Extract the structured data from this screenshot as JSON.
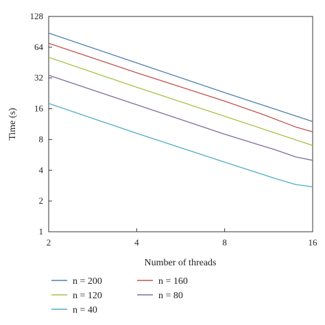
{
  "chart_data": {
    "type": "line",
    "xlabel": "Number of threads",
    "ylabel": "Time (s)",
    "x_scale": "log2",
    "y_scale": "log2",
    "xlim": [
      2,
      16
    ],
    "ylim": [
      1,
      128
    ],
    "x_ticks": [
      "2",
      "4",
      "8",
      "16"
    ],
    "y_ticks": [
      "1",
      "2",
      "4",
      "8",
      "16",
      "32",
      "64",
      "128"
    ],
    "grid": false,
    "legend_position": "bottom",
    "series": [
      {
        "name": "n = 200",
        "color": "#4a7fb0",
        "x": [
          2,
          4,
          8,
          16
        ],
        "y": [
          88,
          45,
          23,
          12
        ]
      },
      {
        "name": "n = 160",
        "color": "#c0504d",
        "x": [
          2,
          4,
          8,
          11,
          14,
          16
        ],
        "y": [
          70,
          36,
          19,
          13.8,
          10.6,
          9.5
        ]
      },
      {
        "name": "n = 120",
        "color": "#a8bf45",
        "x": [
          2,
          4,
          8,
          16
        ],
        "y": [
          51,
          26,
          13.5,
          7
        ]
      },
      {
        "name": "n = 80",
        "color": "#7e6a9c",
        "x": [
          2,
          4,
          8,
          12,
          14,
          16
        ],
        "y": [
          34,
          17.5,
          9,
          6.3,
          5.4,
          5
        ]
      },
      {
        "name": "n = 40",
        "color": "#4bacc6",
        "x": [
          2,
          4,
          8,
          12,
          14,
          16
        ],
        "y": [
          18,
          9.2,
          4.8,
          3.3,
          2.9,
          2.75
        ]
      }
    ]
  }
}
